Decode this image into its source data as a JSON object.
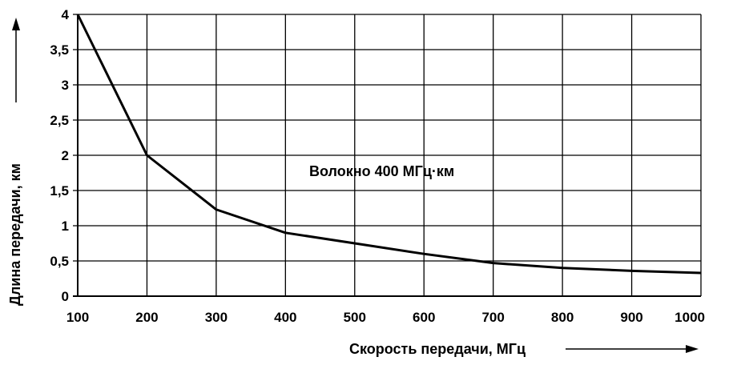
{
  "chart_data": {
    "type": "line",
    "xlabel": "Скорость передачи, МГц",
    "ylabel": "Длина передачи, км",
    "annotation": "Волокно 400 МГц·км",
    "xlim": [
      100,
      1000
    ],
    "ylim": [
      0,
      4
    ],
    "x_ticks": [
      "100",
      "200",
      "300",
      "400",
      "500",
      "600",
      "700",
      "800",
      "900",
      "1000"
    ],
    "y_ticks": [
      "0",
      "0,5",
      "1",
      "1,5",
      "2",
      "2,5",
      "3",
      "3,5",
      "4"
    ],
    "grid": true,
    "series": [
      {
        "x": [
          100,
          200,
          300,
          400,
          500,
          600,
          700,
          800,
          900,
          1000
        ],
        "y": [
          4.0,
          2.0,
          1.23,
          0.9,
          0.75,
          0.6,
          0.47,
          0.4,
          0.36,
          0.33
        ]
      }
    ],
    "colors": {
      "line": "#000000",
      "grid": "#000000"
    }
  }
}
